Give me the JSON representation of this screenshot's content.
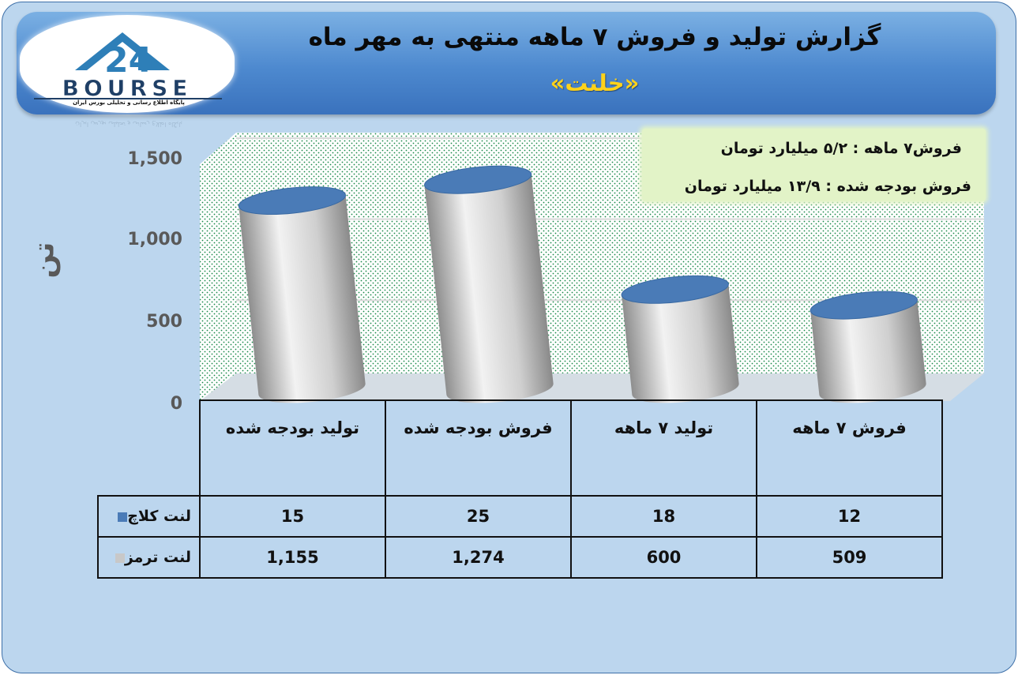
{
  "header": {
    "title": "گزارش تولید و فروش ۷ ماهه منتهی به مهر ماه",
    "subtitle": "«خلنت»"
  },
  "logo": {
    "text": "BOURSE",
    "number": "24",
    "tagline": "پایگاه اطلاع رسانی و تحلیلی بورس ایران"
  },
  "info": {
    "line1": "فروش۷ ماهه : ۵/۲ میلیارد تومان",
    "line2": "فروش بودجه شده : ۱۳/۹ میلیارد تومان"
  },
  "colors": {
    "cylinder_body": "#c8c8c8",
    "cylinder_top": "#4a7bb7",
    "background": "#bcd6ee",
    "header": "#4d89cf",
    "subtitle": "#ffd21a",
    "infobox": "#e2f3c7"
  },
  "chart_data": {
    "type": "bar",
    "style": "3d-cylinder",
    "title": "",
    "ylabel": "تن",
    "ylim": [
      0,
      1500
    ],
    "yticks": [
      "0",
      "500",
      "1,000",
      "1,500"
    ],
    "categories": [
      "تولید بودجه شده",
      "فروش بودجه شده",
      "تولید ۷ ماهه",
      "فروش ۷ ماهه"
    ],
    "series": [
      {
        "name": "لنت کلاچ",
        "color": "#4a7bb7",
        "values": [
          15,
          25,
          18,
          12
        ],
        "labels": [
          "15",
          "25",
          "18",
          "12"
        ]
      },
      {
        "name": "لنت ترمز",
        "color": "#c8c8c8",
        "values": [
          1155,
          1274,
          600,
          509
        ],
        "labels": [
          "1,155",
          "1,274",
          "600",
          "509"
        ]
      }
    ],
    "grid": true,
    "legend": "data-table"
  }
}
